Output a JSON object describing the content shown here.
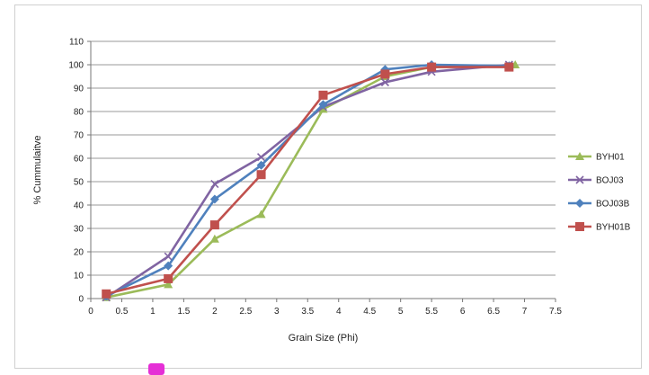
{
  "chart_data": {
    "type": "line",
    "title": "",
    "xlabel": "Grain Size (Phi)",
    "ylabel": "% Cummulaitve",
    "xlim": [
      0,
      7.5
    ],
    "ylim": [
      0,
      110
    ],
    "xticks": [
      "0",
      "0.5",
      "1",
      "1.5",
      "2",
      "2.5",
      "3",
      "3.5",
      "4",
      "4.5",
      "5",
      "5.5",
      "6",
      "6.5",
      "7",
      "7.5"
    ],
    "yticks": [
      "0",
      "10",
      "20",
      "30",
      "40",
      "50",
      "60",
      "70",
      "80",
      "90",
      "100",
      "110"
    ],
    "grid": "horizontal",
    "legend_position": "right",
    "series": [
      {
        "name": "BYH01",
        "color": "#9bbb59",
        "marker": "triangle",
        "x": [
          0.25,
          1.25,
          2.0,
          2.75,
          3.75,
          4.75,
          5.5,
          6.75,
          6.85
        ],
        "y": [
          0.5,
          6,
          25.5,
          36,
          81,
          95,
          99,
          99.5,
          100
        ]
      },
      {
        "name": "BOJ03",
        "color": "#8064a2",
        "marker": "x",
        "x": [
          0.25,
          1.25,
          2.0,
          2.75,
          3.75,
          4.75,
          5.5,
          6.75
        ],
        "y": [
          0.5,
          18,
          49,
          60.5,
          82,
          92.5,
          97,
          100
        ]
      },
      {
        "name": "BOJ03B",
        "color": "#4f81bd",
        "marker": "diamond",
        "x": [
          0.25,
          1.25,
          2.0,
          2.75,
          3.75,
          4.75,
          5.5,
          6.75
        ],
        "y": [
          1,
          14,
          42.5,
          57,
          83,
          98,
          100,
          99.5
        ]
      },
      {
        "name": "BYH01B",
        "color": "#c0504d",
        "marker": "square",
        "x": [
          0.25,
          1.25,
          2.0,
          2.75,
          3.75,
          4.75,
          5.5,
          6.75
        ],
        "y": [
          2,
          8.5,
          31.5,
          53,
          87,
          96,
          99,
          99
        ]
      }
    ]
  }
}
